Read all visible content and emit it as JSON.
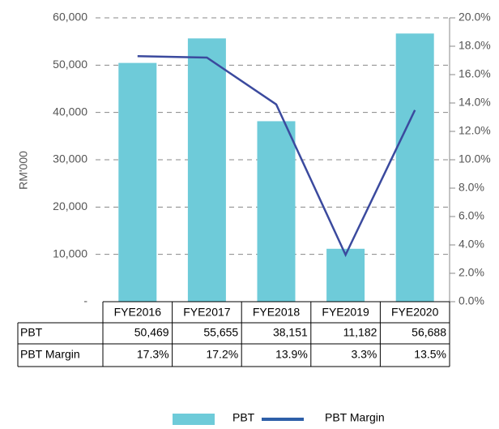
{
  "chart_data": {
    "type": "bar",
    "y_axis_label": "RM'000",
    "categories": [
      "FYE2016",
      "FYE2017",
      "FYE2018",
      "FYE2019",
      "FYE2020"
    ],
    "series": [
      {
        "name": "PBT",
        "type": "bar",
        "color": "#6ecbd9",
        "values": [
          50469,
          55655,
          38151,
          11182,
          56688
        ],
        "value_labels": [
          "50,469",
          "55,655",
          "38,151",
          "11,182",
          "56,688"
        ]
      },
      {
        "name": "PBT Margin",
        "type": "line",
        "axis": "y2",
        "color": "#3b4a9e",
        "values": [
          17.3,
          17.2,
          13.9,
          3.3,
          13.5
        ],
        "value_labels": [
          "17.3%",
          "17.2%",
          "13.9%",
          "3.3%",
          "13.5%"
        ]
      }
    ],
    "ylim": [
      0,
      60000
    ],
    "yticks": [
      {
        "value": 0,
        "label": "-"
      },
      {
        "value": 10000,
        "label": "10,000"
      },
      {
        "value": 20000,
        "label": "20,000"
      },
      {
        "value": 30000,
        "label": "30,000"
      },
      {
        "value": 40000,
        "label": "40,000"
      },
      {
        "value": 50000,
        "label": "50,000"
      },
      {
        "value": 60000,
        "label": "60,000"
      }
    ],
    "y2lim": [
      0,
      20
    ],
    "y2ticks": [
      {
        "value": 0,
        "label": "0.0%"
      },
      {
        "value": 2,
        "label": "2.0%"
      },
      {
        "value": 4,
        "label": "4.0%"
      },
      {
        "value": 6,
        "label": "6.0%"
      },
      {
        "value": 8,
        "label": "8.0%"
      },
      {
        "value": 10,
        "label": "10.0%"
      },
      {
        "value": 12,
        "label": "12.0%"
      },
      {
        "value": 14,
        "label": "14.0%"
      },
      {
        "value": 16,
        "label": "16.0%"
      },
      {
        "value": 18,
        "label": "18.0%"
      },
      {
        "value": 20,
        "label": "20.0%"
      }
    ],
    "grid": true,
    "legend": "bottom"
  }
}
